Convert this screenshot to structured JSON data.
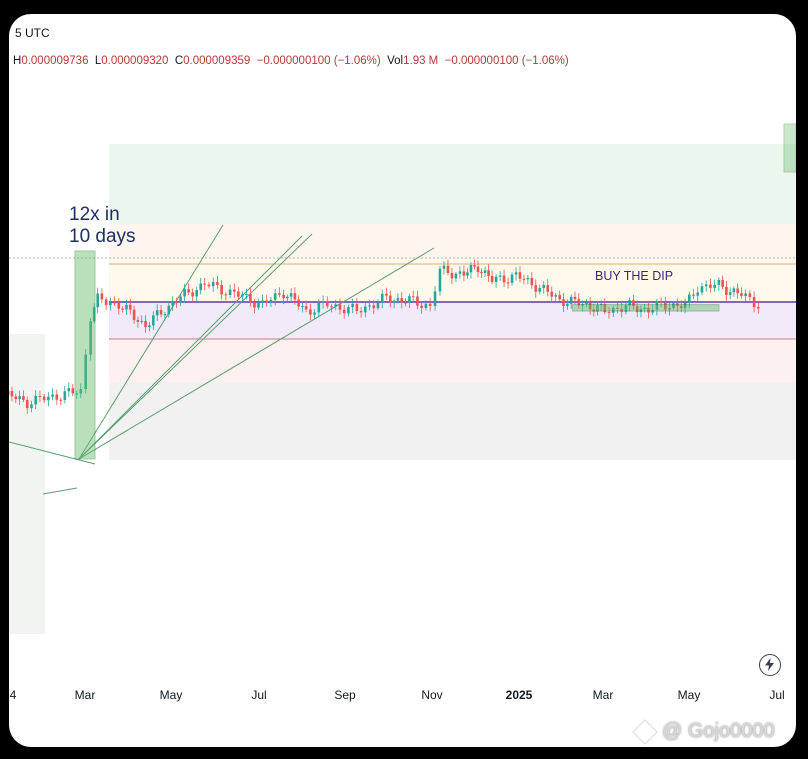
{
  "header": {
    "title": "5 UTC",
    "ohlc": {
      "h_label": "H",
      "h": "0.000009736",
      "l_label": "L",
      "l": "0.000009320",
      "c_label": "C",
      "c": "0.000009359",
      "change": "−0.000000100 (−1.06%)",
      "vol_label": "Vol",
      "vol": "1.93 M",
      "vol_change": "−0.000000100 (−1.06%)"
    }
  },
  "annotations": {
    "pump_line1": "12x in",
    "pump_line2": "10 days",
    "buy_zone": "BUY THE DIP"
  },
  "watermark": "@ Gojo0000",
  "colors": {
    "up": "#26a69a",
    "down": "#ef5350",
    "zone_green": "#2e7d32",
    "support_line": "#5e35b1",
    "text": "#131722"
  },
  "icons": [
    "lightning-icon",
    "binance-diamond-icon"
  ],
  "chart_data": {
    "type": "line",
    "title": "",
    "xlabel": "",
    "ylabel": "",
    "x_axis_labels": [
      "4",
      "Mar",
      "May",
      "Jul",
      "Sep",
      "Nov",
      "2025",
      "Mar",
      "May",
      "Jul"
    ],
    "x_axis_bold": [
      "2025"
    ],
    "series": [
      {
        "values": [
          {
            "x": "2024-01-01",
            "y": 4.2e-06
          },
          {
            "x": "2024-01-20",
            "y": 3.6e-06
          },
          {
            "x": "2024-02-10",
            "y": 4e-06
          },
          {
            "x": "2024-02-27",
            "y": 4.3e-06
          },
          {
            "x": "2024-03-05",
            "y": 9e-06
          },
          {
            "x": "2024-03-10",
            "y": 1e-05
          },
          {
            "x": "2024-03-25",
            "y": 9.7e-06
          },
          {
            "x": "2024-04-13",
            "y": 8.4e-06
          },
          {
            "x": "2024-05-05",
            "y": 1e-05
          },
          {
            "x": "2024-05-25",
            "y": 1.1e-05
          },
          {
            "x": "2024-06-15",
            "y": 1.04e-05
          },
          {
            "x": "2024-07-05",
            "y": 9.7e-06
          },
          {
            "x": "2024-07-20",
            "y": 1.05e-05
          },
          {
            "x": "2024-08-05",
            "y": 9.3e-06
          },
          {
            "x": "2024-08-20",
            "y": 9.7e-06
          },
          {
            "x": "2024-09-10",
            "y": 9.3e-06
          },
          {
            "x": "2024-10-01",
            "y": 1.01e-05
          },
          {
            "x": "2024-10-20",
            "y": 9.9e-06
          },
          {
            "x": "2024-11-01",
            "y": 9.6e-06
          },
          {
            "x": "2024-11-08",
            "y": 1.18e-05
          },
          {
            "x": "2024-11-25",
            "y": 1.16e-05
          },
          {
            "x": "2024-12-05",
            "y": 1.21e-05
          },
          {
            "x": "2024-12-15",
            "y": 1.12e-05
          },
          {
            "x": "2025-01-01",
            "y": 1.15e-05
          },
          {
            "x": "2025-01-15",
            "y": 1.09e-05
          },
          {
            "x": "2025-02-01",
            "y": 1e-05
          },
          {
            "x": "2025-02-20",
            "y": 9.7e-06
          },
          {
            "x": "2025-03-05",
            "y": 9.3e-06
          },
          {
            "x": "2025-03-20",
            "y": 9.6e-06
          },
          {
            "x": "2025-04-05",
            "y": 9.4e-06
          },
          {
            "x": "2025-04-20",
            "y": 9.7e-06
          },
          {
            "x": "2025-05-01",
            "y": 9.6e-06
          },
          {
            "x": "2025-05-10",
            "y": 1.08e-05
          },
          {
            "x": "2025-05-25",
            "y": 1.09e-05
          },
          {
            "x": "2025-06-10",
            "y": 1.03e-05
          },
          {
            "x": "2025-06-25",
            "y": 9.6e-06
          }
        ]
      }
    ],
    "zones": [
      {
        "label": "BUY THE DIP",
        "x_start": "2025-02-10",
        "x_end": "2025-05-25",
        "y_low": 9.3e-06,
        "y_high": 9.7e-06
      }
    ],
    "support_level": 9.3e-06,
    "grid": false,
    "legend": "none"
  }
}
